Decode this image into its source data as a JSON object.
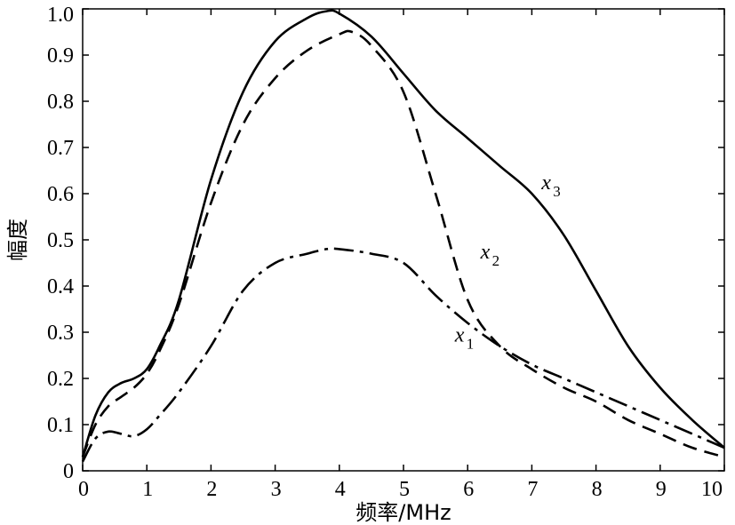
{
  "chart_data": {
    "type": "line",
    "xlabel": "频率/MHz",
    "ylabel": "幅度",
    "xlim": [
      0,
      10
    ],
    "ylim": [
      0,
      1.0
    ],
    "xticks": [
      "0",
      "1",
      "2",
      "3",
      "4",
      "5",
      "6",
      "7",
      "8",
      "9",
      "10"
    ],
    "yticks": [
      "0",
      "0.1",
      "0.2",
      "0.3",
      "0.4",
      "0.5",
      "0.6",
      "0.7",
      "0.8",
      "0.9",
      "1.0"
    ],
    "grid": false,
    "series": [
      {
        "name": "x3",
        "label_main": "x",
        "label_sub": "3",
        "style": "solid",
        "x": [
          0,
          0.2,
          0.4,
          0.6,
          0.8,
          1.0,
          1.2,
          1.5,
          2.0,
          2.5,
          3.0,
          3.5,
          3.8,
          4.0,
          4.5,
          5.0,
          5.5,
          6.0,
          6.5,
          7.0,
          7.5,
          8.0,
          8.5,
          9.0,
          9.5,
          10.0
        ],
        "y": [
          0.03,
          0.12,
          0.17,
          0.19,
          0.2,
          0.22,
          0.27,
          0.37,
          0.63,
          0.82,
          0.93,
          0.98,
          0.995,
          0.99,
          0.94,
          0.86,
          0.78,
          0.72,
          0.66,
          0.6,
          0.51,
          0.39,
          0.27,
          0.18,
          0.11,
          0.05
        ]
      },
      {
        "name": "x2",
        "label_main": "x",
        "label_sub": "2",
        "style": "dashed",
        "x": [
          0,
          0.2,
          0.4,
          0.6,
          0.8,
          1.0,
          1.2,
          1.5,
          2.0,
          2.5,
          3.0,
          3.5,
          4.0,
          4.2,
          4.5,
          5.0,
          5.5,
          6.0,
          6.5,
          7.0,
          7.5,
          8.0,
          8.5,
          9.0,
          9.5,
          10.0
        ],
        "y": [
          0.03,
          0.1,
          0.14,
          0.16,
          0.18,
          0.21,
          0.26,
          0.36,
          0.58,
          0.75,
          0.85,
          0.91,
          0.945,
          0.95,
          0.92,
          0.82,
          0.6,
          0.37,
          0.27,
          0.22,
          0.18,
          0.15,
          0.11,
          0.08,
          0.05,
          0.03
        ]
      },
      {
        "name": "x1",
        "label_main": "x",
        "label_sub": "1",
        "style": "dashdot",
        "x": [
          0,
          0.2,
          0.4,
          0.6,
          0.8,
          1.0,
          1.2,
          1.5,
          2.0,
          2.5,
          3.0,
          3.5,
          3.8,
          4.0,
          4.5,
          5.0,
          5.5,
          6.0,
          6.5,
          7.0,
          7.5,
          8.0,
          8.5,
          9.0,
          9.5,
          10.0
        ],
        "y": [
          0.02,
          0.07,
          0.085,
          0.08,
          0.075,
          0.09,
          0.12,
          0.17,
          0.27,
          0.39,
          0.45,
          0.47,
          0.48,
          0.48,
          0.47,
          0.45,
          0.38,
          0.32,
          0.27,
          0.23,
          0.2,
          0.17,
          0.14,
          0.11,
          0.08,
          0.05
        ]
      }
    ]
  }
}
